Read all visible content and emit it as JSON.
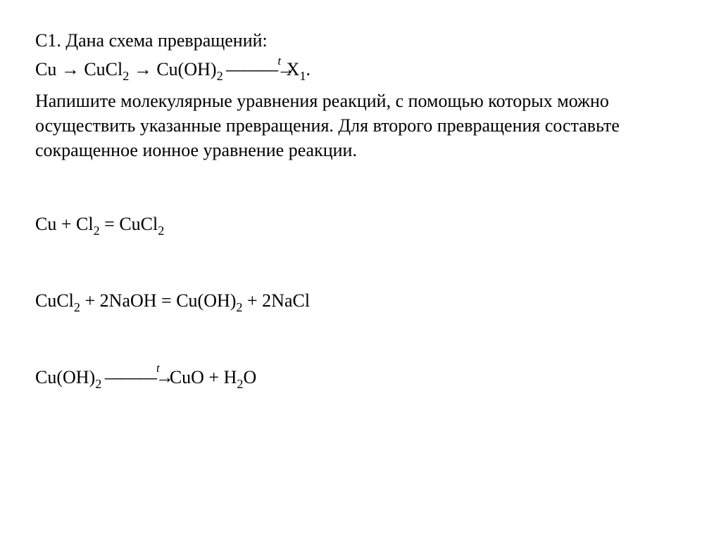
{
  "problem": {
    "label": "С1. Дана схема превращений:",
    "scheme_prefix": "Cu → CuCl",
    "scheme_sub1": "2",
    "scheme_mid1": " → Cu(OH)",
    "scheme_sub2": "2",
    "scheme_arrow_t": " ———→",
    "scheme_t": "t",
    "scheme_end1": "X",
    "scheme_end_sub": "1",
    "scheme_period": ".",
    "task_text": "Напишите молекулярные уравнения реакций, с помощью которых можно осуществить указанные превращения. Для второго превращения составьте сокращенное ионное уравнение реакции."
  },
  "equations": {
    "eq1_a": "Cu + Cl",
    "eq1_sub1": "2",
    "eq1_b": " = CuCl",
    "eq1_sub2": "2",
    "eq2_a": "CuCl",
    "eq2_sub1": "2",
    "eq2_b": " + 2NaOH = Cu(OH)",
    "eq2_sub2": "2",
    "eq2_c": " + 2NaCl",
    "eq3_a": "Cu(OH)",
    "eq3_sub1": "2",
    "eq3_arrow_t": " ———→",
    "eq3_t": "t",
    "eq3_b": " CuO + H",
    "eq3_sub2": "2",
    "eq3_c": "O"
  },
  "style": {
    "font_family": "Times New Roman",
    "font_size_pt": 20,
    "text_color": "#000000",
    "background_color": "#ffffff"
  }
}
